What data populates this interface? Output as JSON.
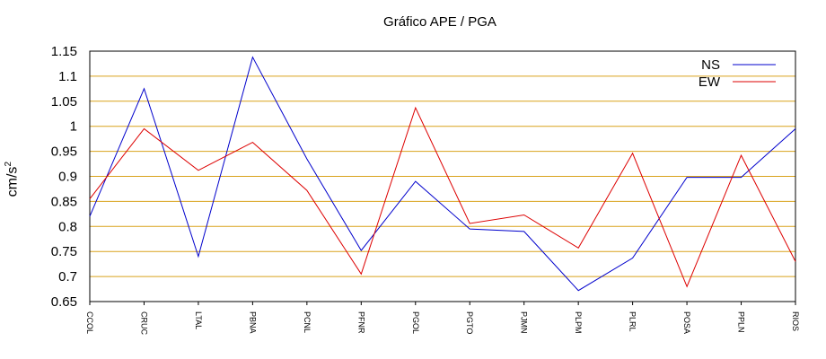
{
  "chart_data": {
    "type": "line",
    "title": "Gráfico  APE / PGA",
    "ylabel": "cm/s",
    "ylabel_superscript": "2",
    "xlabel": "",
    "categories": [
      "CCOL",
      "CRUC",
      "LTAL",
      "PBNA",
      "PCNL",
      "PFNR",
      "PGOL",
      "PGTO",
      "PJMN",
      "PLPM",
      "PLRL",
      "POSA",
      "PPLN",
      "RIOS"
    ],
    "ylim": [
      0.65,
      1.15
    ],
    "yticks": [
      "0.65",
      "0.7",
      "0.75",
      "0.8",
      "0.85",
      "0.9",
      "0.95",
      "1",
      "1.05",
      "1.1",
      "1.15"
    ],
    "grid": true,
    "grid_color": "#d9a21c",
    "legend_position": "top-right",
    "series": [
      {
        "name": "NS",
        "color": "#0000cc",
        "values": [
          0.82,
          1.075,
          0.74,
          1.138,
          0.935,
          0.752,
          0.89,
          0.795,
          0.79,
          0.672,
          0.737,
          0.898,
          0.898,
          0.995
        ]
      },
      {
        "name": "EW",
        "color": "#dd0000",
        "values": [
          0.855,
          0.995,
          0.912,
          0.968,
          0.872,
          0.705,
          1.037,
          0.806,
          0.823,
          0.757,
          0.946,
          0.68,
          0.942,
          0.73
        ]
      }
    ]
  }
}
